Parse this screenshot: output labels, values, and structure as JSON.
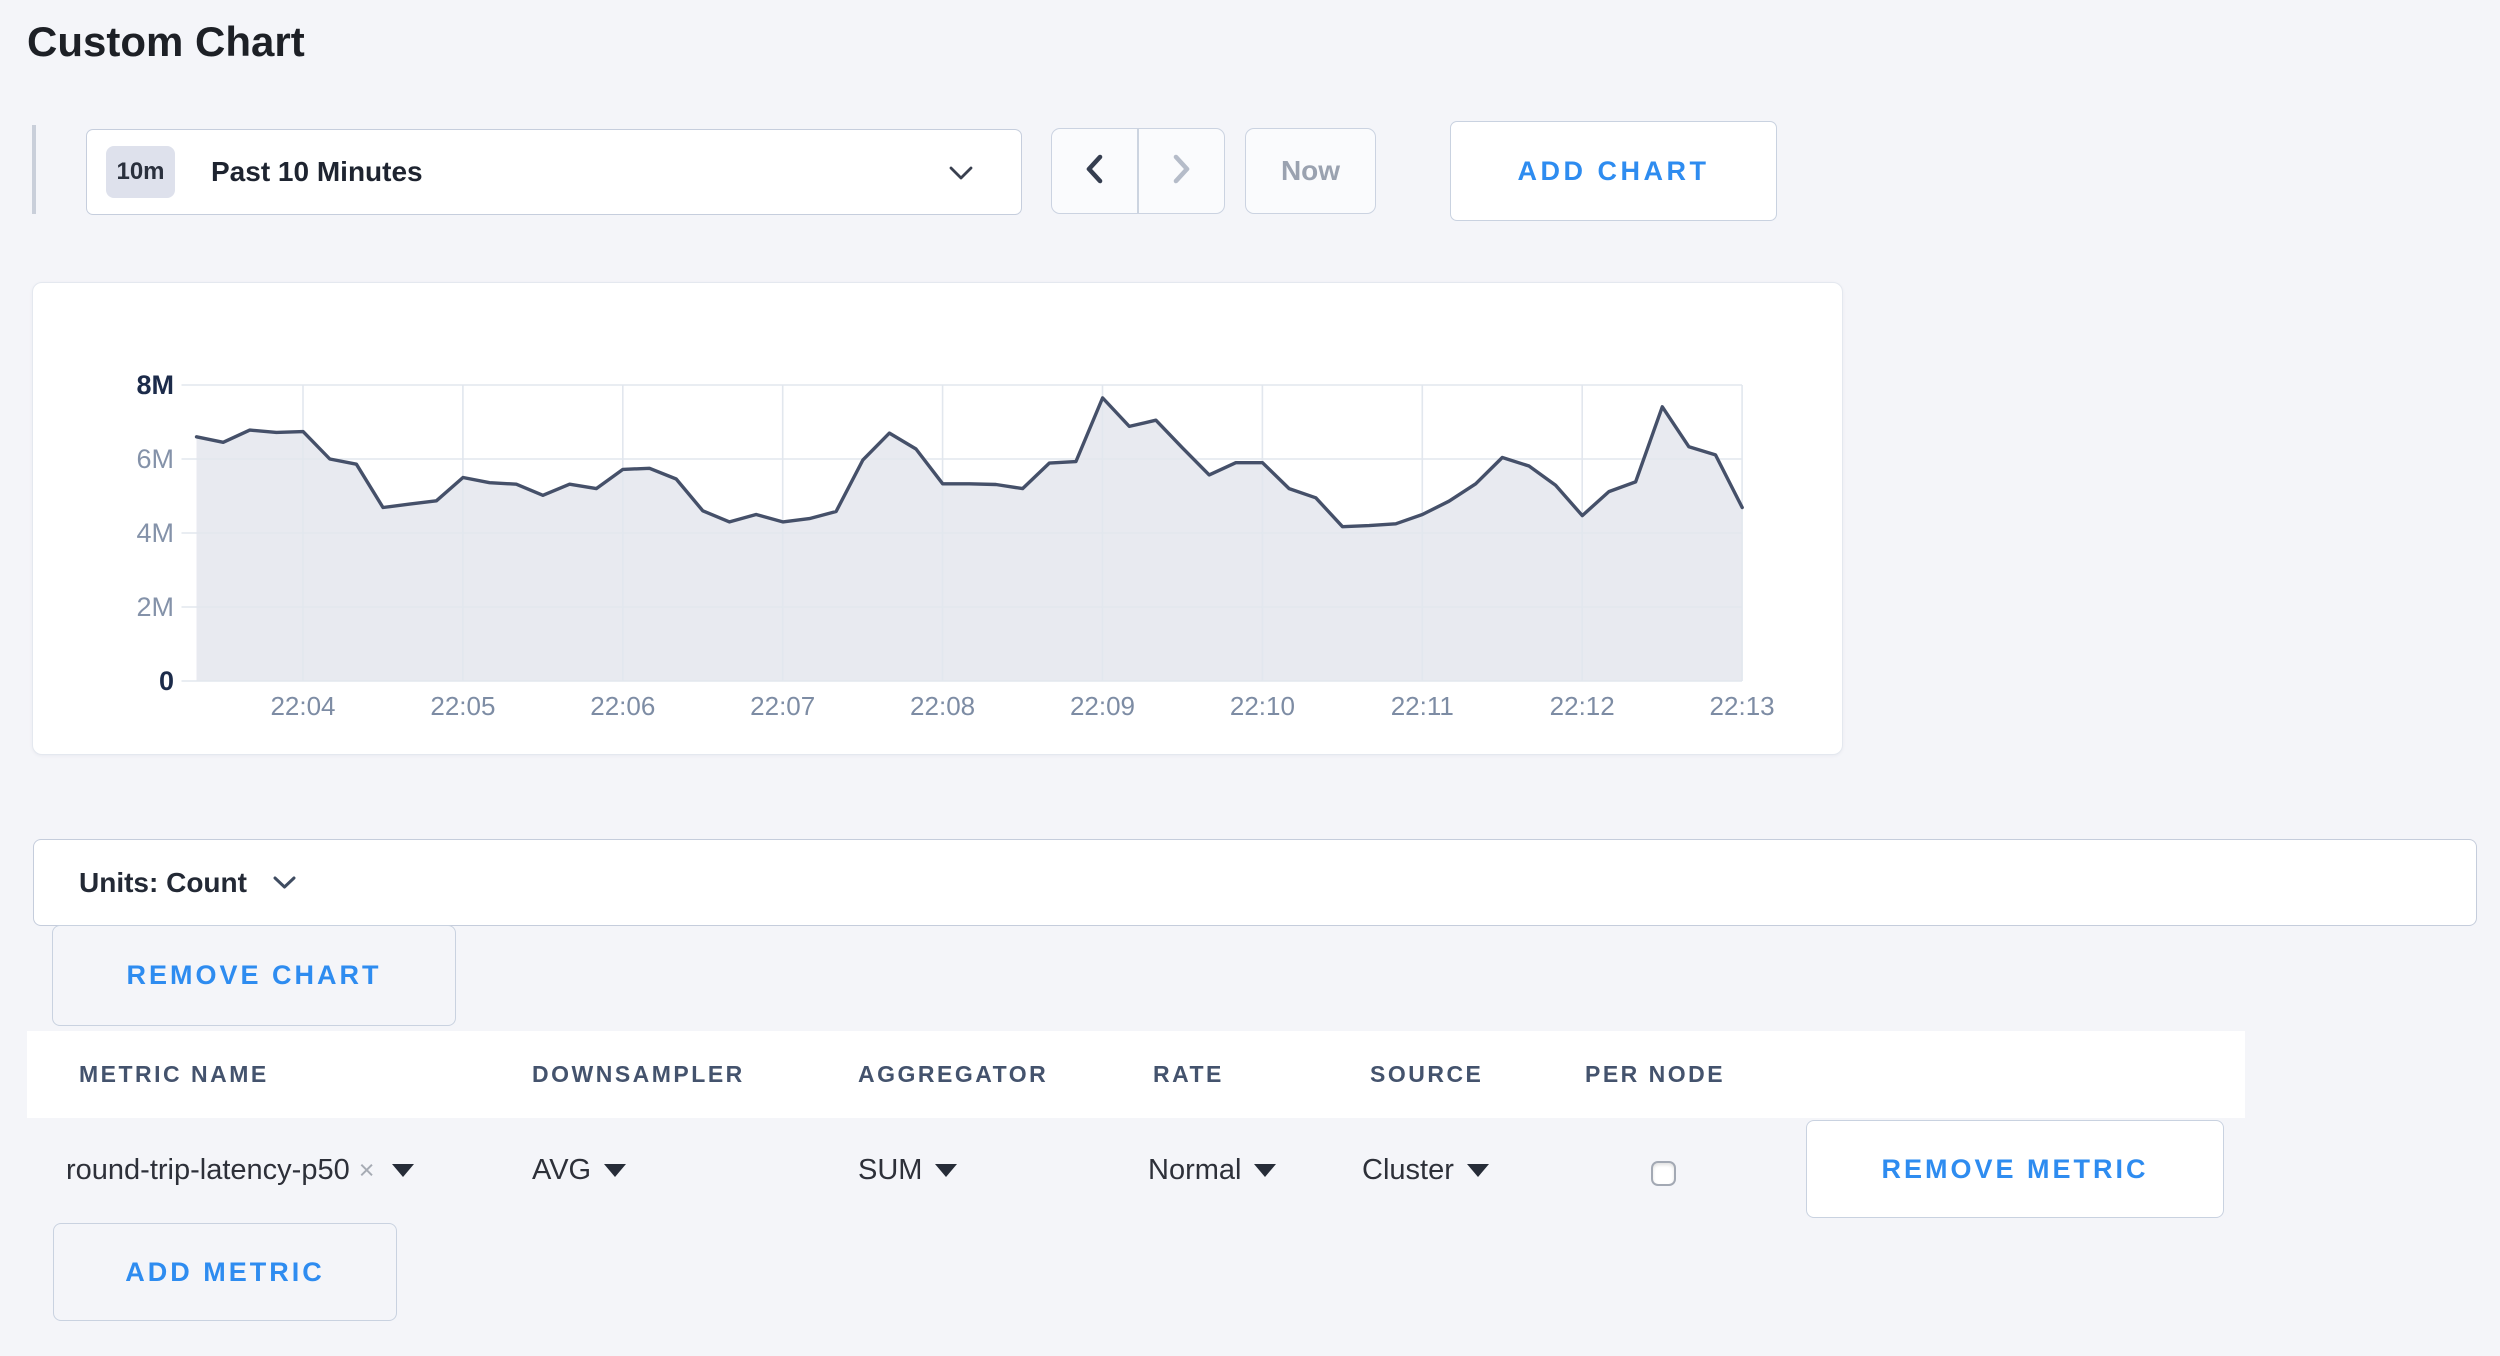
{
  "page": {
    "title": "Custom Chart",
    "accent_blue": "#2e8cf0",
    "background": "#f4f5f9"
  },
  "toolbar": {
    "time_scale_badge": "10m",
    "time_range_label": "Past 10 Minutes",
    "now_label": "Now",
    "add_chart_label": "ADD CHART"
  },
  "units_bar": {
    "label": "Units: Count"
  },
  "chart_buttons": {
    "remove_chart_label": "REMOVE CHART"
  },
  "metrics_table": {
    "columns": [
      "METRIC NAME",
      "DOWNSAMPLER",
      "AGGREGATOR",
      "RATE",
      "SOURCE",
      "PER NODE"
    ],
    "rows": [
      {
        "metric_name": "round-trip-latency-p50",
        "remove_token_icon": "×",
        "downsampler": "AVG",
        "aggregator": "SUM",
        "rate": "Normal",
        "source": "Cluster",
        "per_node_checked": false,
        "remove_metric_label": "REMOVE METRIC"
      }
    ],
    "add_metric_label": "ADD METRIC"
  },
  "chart_data": {
    "type": "area",
    "title": "",
    "unit": "Count",
    "x_start": "22:03:20",
    "interval_seconds": 10,
    "x_tick_labels": [
      "22:04",
      "22:05",
      "22:06",
      "22:07",
      "22:08",
      "22:09",
      "22:10",
      "22:11",
      "22:12",
      "22:13"
    ],
    "y_tick_labels": [
      "0",
      "2M",
      "4M",
      "6M",
      "8M"
    ],
    "y_max_millions": 8,
    "ylim": [
      0,
      8000000
    ],
    "grid": true,
    "legend": false,
    "values_millions": [
      6.6,
      6.45,
      6.78,
      6.72,
      6.74,
      6.0,
      5.86,
      4.69,
      4.78,
      4.87,
      5.5,
      5.36,
      5.32,
      5.02,
      5.32,
      5.2,
      5.72,
      5.75,
      5.46,
      4.6,
      4.3,
      4.5,
      4.3,
      4.39,
      4.58,
      5.97,
      6.7,
      6.27,
      5.33,
      5.33,
      5.31,
      5.2,
      5.89,
      5.93,
      7.65,
      6.88,
      7.05,
      6.3,
      5.57,
      5.9,
      5.9,
      5.2,
      4.95,
      4.17,
      4.2,
      4.25,
      4.5,
      4.86,
      5.33,
      6.04,
      5.81,
      5.29,
      4.47,
      5.12,
      5.38,
      7.41,
      6.33,
      6.11,
      4.69
    ],
    "line_color": "#455069",
    "fill_color": "#e8eaf0",
    "grid_color": "#e2e7ee",
    "axis_emphasis_color": "#1c2b4a",
    "axis_muted_color": "#8492a9"
  }
}
